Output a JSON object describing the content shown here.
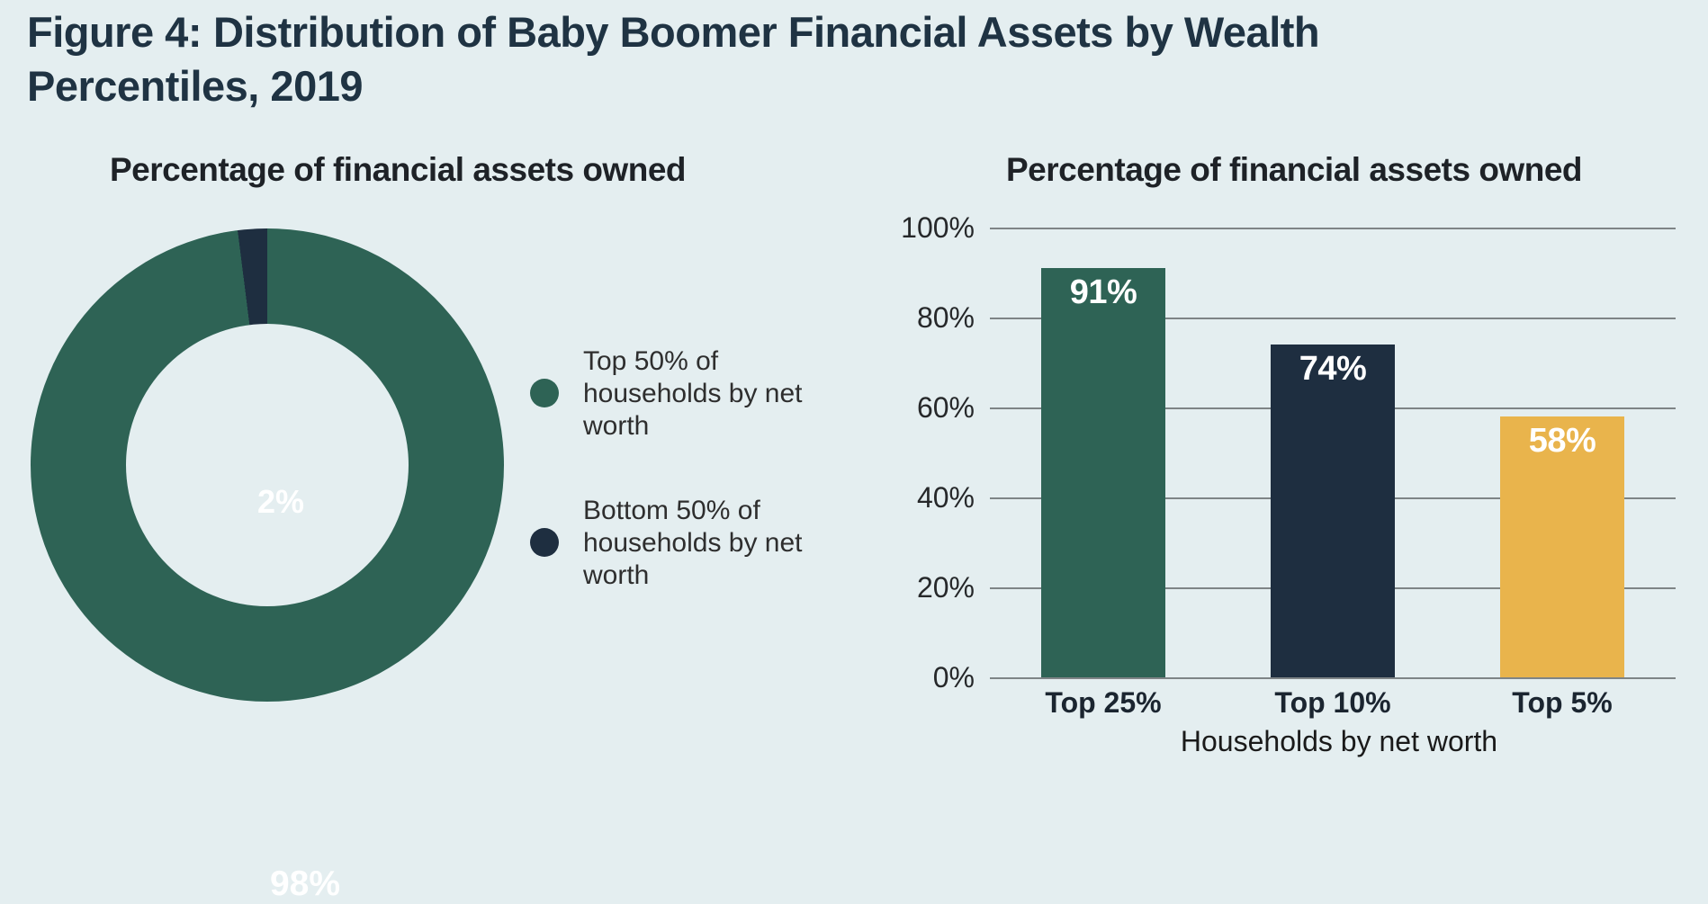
{
  "page": {
    "background": "#e4eef0",
    "gridline_color": "#7e8486"
  },
  "figure_title": {
    "prefix": "Figure 4:",
    "line1_rest": "Distribution of Baby Boomer Financial Assets by Wealth",
    "line2": "Percentiles, 2019"
  },
  "colors": {
    "green": "#2e6355",
    "navy": "#1e2e40",
    "yellow": "#e9b44c"
  },
  "chart_data": [
    {
      "type": "pie",
      "donut": true,
      "title": "Percentage of financial assets owned",
      "labels": [
        "Top 50% of households by net worth",
        "Bottom 50% of households by net worth"
      ],
      "values": [
        98,
        2
      ],
      "data_labels": [
        "98%",
        "2%"
      ],
      "colors": [
        "#2e6355",
        "#1e2e40"
      ],
      "legend_position": "right",
      "start_angle_deg": 0
    },
    {
      "type": "bar",
      "title": "Percentage of financial assets owned",
      "categories": [
        "Top 25%",
        "Top 10%",
        "Top 5%"
      ],
      "values": [
        91,
        74,
        58
      ],
      "data_labels": [
        "91%",
        "74%",
        "58%"
      ],
      "colors": [
        "#2e6355",
        "#1e2e40",
        "#e9b44c"
      ],
      "xlabel": "Households by net worth",
      "ylabel": "",
      "ylim": [
        0,
        100
      ],
      "yticks": [
        "100%",
        "80%",
        "60%",
        "40%",
        "20%",
        "0%"
      ],
      "grid": true,
      "legend_position": "none"
    }
  ]
}
